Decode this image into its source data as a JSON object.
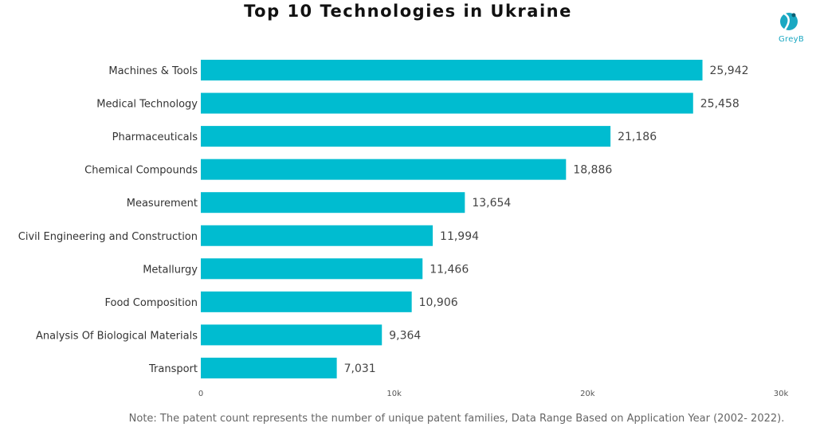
{
  "chart_data": {
    "type": "bar",
    "orientation": "horizontal",
    "title": "Top 10 Technologies in Ukraine",
    "categories": [
      "Machines & Tools",
      "Medical Technology",
      "Pharmaceuticals",
      "Chemical Compounds",
      "Measurement",
      "Civil Engineering and Construction",
      "Metallurgy",
      "Food Composition",
      "Analysis Of Biological Materials",
      "Transport"
    ],
    "values": [
      25942,
      25458,
      21186,
      18886,
      13654,
      11994,
      11466,
      10906,
      9364,
      7031
    ],
    "value_labels": [
      "25,942",
      "25,458",
      "21,186",
      "18,886",
      "13,654",
      "11,994",
      "11,466",
      "10,906",
      "9,364",
      "7,031"
    ],
    "xlim": [
      0,
      30000
    ],
    "xticks": [
      0,
      10000,
      20000,
      30000
    ],
    "xtick_labels": [
      "0",
      "10k",
      "20k",
      "30k"
    ],
    "grid": false,
    "bar_color": "#00bcd0"
  },
  "logo": {
    "text": "GreyB",
    "color": "#1aa8c2"
  },
  "note": "Note: The patent count represents the number of unique patent families, Data Range Based on Application Year (2002- 2022)."
}
